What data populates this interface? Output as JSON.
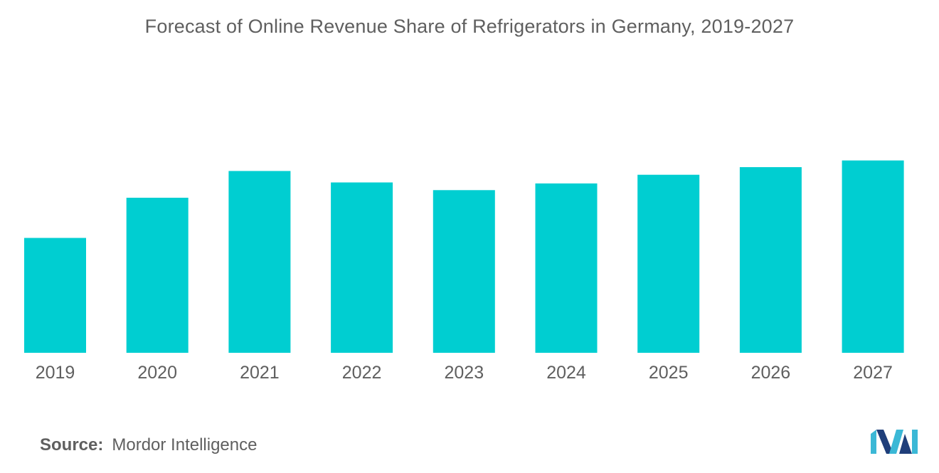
{
  "chart_data": {
    "type": "bar",
    "title": "Forecast of Online Revenue Share of Refrigerators in Germany, 2019-2027",
    "categories": [
      "2019",
      "2020",
      "2021",
      "2022",
      "2023",
      "2024",
      "2025",
      "2026",
      "2027"
    ],
    "values": [
      60,
      81,
      95,
      89,
      85,
      88.5,
      93,
      97,
      100.5
    ],
    "xlabel": "",
    "ylabel": "",
    "ylim": [
      0,
      110
    ],
    "grid": false,
    "legend": "none",
    "bar_color": "#00ced1"
  },
  "source": {
    "label": "Source:",
    "value": "Mordor Intelligence"
  },
  "colors": {
    "text": "#5f5f5f",
    "logo_dark": "#1f3e7a",
    "logo_light": "#3bb8d6"
  }
}
